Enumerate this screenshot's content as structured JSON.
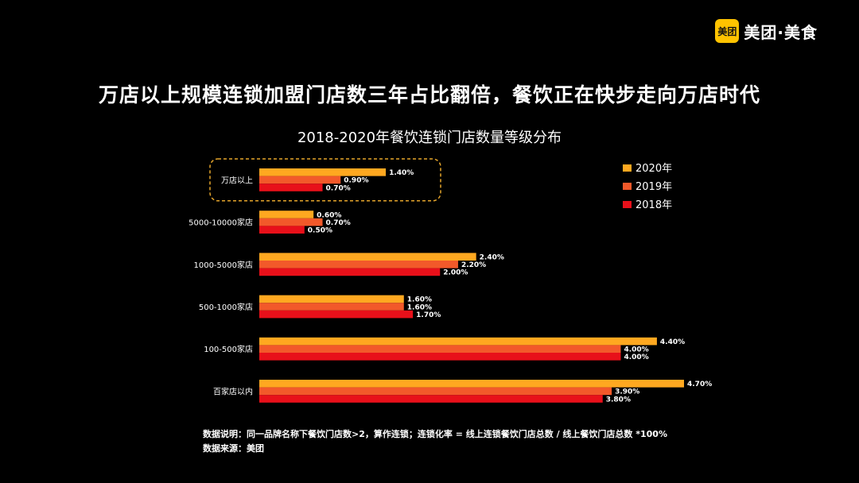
{
  "logo": {
    "badge": "美团",
    "text": "美团·美食"
  },
  "headline": "万店以上规模连锁加盟门店数三年占比翻倍，餐饮正在快步走向万店时代",
  "colors": {
    "2020年": "#FFA820",
    "2019年": "#F2592A",
    "2018年": "#E8101A",
    "highlight": "#E5A52B"
  },
  "chart_data": {
    "type": "bar",
    "orientation": "horizontal",
    "title": "2018-2020年餐饮连锁门店数量等级分布",
    "categories": [
      "万店以上",
      "5000-10000家店",
      "1000-5000家店",
      "500-1000家店",
      "100-500家店",
      "百家店以内"
    ],
    "series": [
      {
        "name": "2020年",
        "values": [
          1.4,
          0.6,
          2.4,
          1.6,
          4.4,
          4.7
        ],
        "labels": [
          "1.40%",
          "0.60%",
          "2.40%",
          "1.60%",
          "4.40%",
          "4.70%"
        ]
      },
      {
        "name": "2019年",
        "values": [
          0.9,
          0.7,
          2.2,
          1.6,
          4.0,
          3.9
        ],
        "labels": [
          "0.90%",
          "0.70%",
          "2.20%",
          "1.60%",
          "4.00%",
          "3.90%"
        ]
      },
      {
        "name": "2018年",
        "values": [
          0.7,
          0.5,
          2.0,
          1.7,
          4.0,
          3.8
        ],
        "labels": [
          "0.70%",
          "0.50%",
          "2.00%",
          "1.70%",
          "4.00%",
          "3.80%"
        ]
      }
    ],
    "xlim": [
      0,
      4.7
    ],
    "legend_position": "top-right",
    "highlighted_category": "万店以上",
    "grid": false
  },
  "notes": {
    "description": "数据说明：同一品牌名称下餐饮门店数>2，算作连锁；连锁化率 = 线上连锁餐饮门店总数 / 线上餐饮门店总数 *100%",
    "source": "数据来源：美团"
  }
}
